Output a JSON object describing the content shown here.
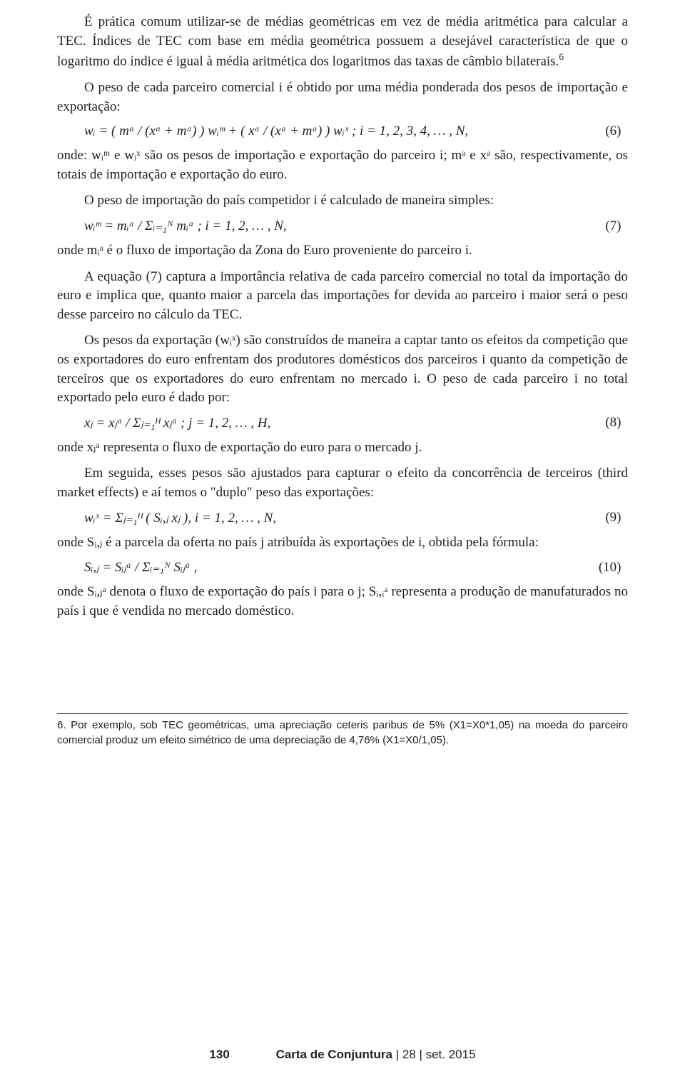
{
  "paragraphs": {
    "p1": "É prática comum utilizar-se de médias geométricas em vez de média aritmética para calcular a TEC. Índices de TEC com base em média geométrica possuem a desejável característica de que o logaritmo do índice é igual à média aritmética dos logaritmos das taxas de câmbio bilaterais.",
    "fn_marker_6": "6",
    "p2": "O peso de cada parceiro comercial i é obtido por uma média ponderada dos pesos de importação e exportação:",
    "p3_a": "onde: wᵢᵐ e wᵢˣ são os pesos de importação e exportação do parceiro i; mᵃ e xᵃ",
    "p3_b": " são, respectivamente, os totais de importação e exportação do euro.",
    "p4": "O peso de importação do país competidor i é calculado de maneira simples:",
    "p5": "onde mᵢᵃ é o fluxo de importação da Zona do Euro proveniente do parceiro i.",
    "p6": "A equação (7) captura a importância relativa de cada parceiro comercial no total da importação do euro e implica que, quanto maior a parcela das importações for devida ao parceiro i maior será o peso desse parceiro no cálculo da TEC.",
    "p7": "Os pesos da exportação (wᵢˣ) são construídos de maneira a captar tanto os efeitos da competição que os exportadores do euro enfrentam dos produtores domésticos dos parceiros i quanto da competição de terceiros que os exportadores do euro enfrentam no mercado i. O peso de cada parceiro i no total exportado pelo euro é dado por:",
    "p8": "onde xⱼᵃ representa o fluxo de exportação do euro para o mercado j.",
    "p9": "Em seguida, esses pesos são ajustados para capturar o efeito da concorrência de terceiros (third market effects) e aí temos o \"duplo\" peso das exportações:",
    "p10": "onde Sᵢ,ⱼ é a parcela da oferta no país j atribuída às exportações de i, obtida pela fórmula:",
    "p11": "onde Sᵢ,ⱼᵃ denota o fluxo de exportação do país i para o j; Sᵢ,ᵢᵃ representa a produção de manufaturados no país i que é vendida no mercado doméstico."
  },
  "equations": {
    "eq6": "wᵢ = ( mᵃ / (xᵃ + mᵃ) ) wᵢᵐ + ( xᵃ / (xᵃ + mᵃ) ) wᵢˣ ;   i = 1, 2, 3, 4, … , N,",
    "eq6_num": "(6)",
    "eq7": "wᵢᵐ = mᵢᵃ / Σᵢ₌₁ᴺ mᵢᵃ ;   i = 1, 2, … , N,",
    "eq7_num": "(7)",
    "eq8": "xⱼ = xⱼᵃ / Σⱼ₌₁ᴴ xⱼᵃ ;   j = 1, 2, … , H,",
    "eq8_num": "(8)",
    "eq9": "wᵢˣ = Σⱼ₌₁ᴴ ( Sᵢ,ⱼ xⱼ ),   i = 1, 2, … , N,",
    "eq9_num": "(9)",
    "eq10": "Sᵢ,ⱼ = Sᵢⱼᵃ / Σᵢ₌₁ᴺ Sᵢⱼᵃ ,",
    "eq10_num": "(10)"
  },
  "footnote": {
    "text": "6. Por exemplo, sob TEC geométricas, uma apreciação ceteris paribus de 5% (X1=X0*1,05) na moeda do parceiro comercial produz um efeito simétrico de uma depreciação de 4,76% (X1=X0/1,05)."
  },
  "footer": {
    "page_number": "130",
    "publication_title": "Carta de Conjuntura",
    "issue_sep": " | 28 | set. 2015"
  },
  "colors": {
    "text": "#231f20",
    "background": "#ffffff",
    "rule": "#231f20"
  },
  "typography": {
    "body_font": "Times New Roman / Georgia serif",
    "body_fontsize_pt": 14,
    "footnote_font": "Arial / Helvetica",
    "footnote_fontsize_pt": 11
  }
}
